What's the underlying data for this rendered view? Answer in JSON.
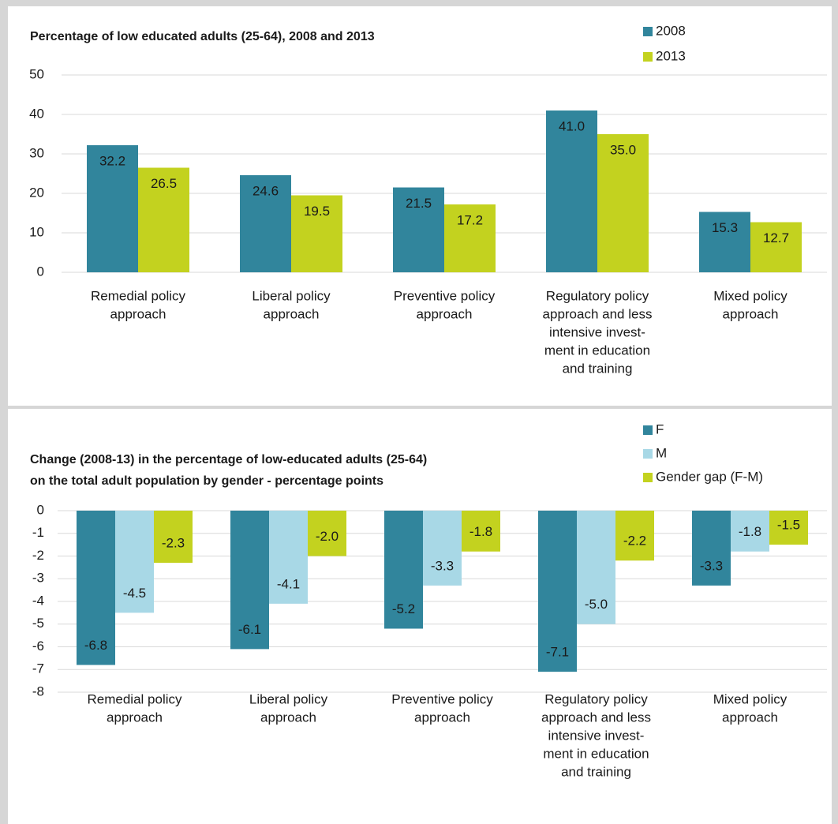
{
  "chart_data": [
    {
      "type": "bar",
      "title": "Percentage of low educated adults (25-64), 2008 and 2013",
      "categories": [
        [
          "Remedial policy",
          "approach"
        ],
        [
          "Liberal policy",
          "approach"
        ],
        [
          "Preventive policy",
          "approach"
        ],
        [
          "Regulatory policy",
          "approach and less",
          "intensive invest-",
          "ment in education",
          "and training"
        ],
        [
          "Mixed policy",
          "approach"
        ]
      ],
      "series": [
        {
          "name": "2008",
          "color": "#31859c",
          "values": [
            32.2,
            24.6,
            21.5,
            41.0,
            15.3
          ],
          "value_labels": [
            "32.2",
            "24.6",
            "21.5",
            "41.0",
            "15.3"
          ]
        },
        {
          "name": "2013",
          "color": "#c3d21f",
          "values": [
            26.5,
            19.5,
            17.2,
            35.0,
            12.7
          ],
          "value_labels": [
            "26.5",
            "19.5",
            "17.2",
            "35.0",
            "12.7"
          ]
        }
      ],
      "ylim": [
        0,
        50
      ],
      "yticks": [
        0,
        10,
        20,
        30,
        40,
        50
      ],
      "grid": true
    },
    {
      "type": "bar",
      "title": [
        "Change (2008-13) in the percentage of low-educated adults (25-64)",
        "on the total adult population by gender - percentage points"
      ],
      "categories": [
        [
          "Remedial policy",
          "approach"
        ],
        [
          "Liberal policy",
          "approach"
        ],
        [
          "Preventive policy",
          "approach"
        ],
        [
          "Regulatory policy",
          "approach and less",
          "intensive invest-",
          "ment in education",
          "and training"
        ],
        [
          "Mixed policy",
          "approach"
        ]
      ],
      "series": [
        {
          "name": "F",
          "color": "#31859c",
          "values": [
            -6.8,
            -6.1,
            -5.2,
            -7.1,
            -3.3
          ],
          "value_labels": [
            "-6.8",
            "-6.1",
            "-5.2",
            "-7.1",
            "-3.3"
          ]
        },
        {
          "name": "M",
          "color": "#a8d8e6",
          "values": [
            -4.5,
            -4.1,
            -3.3,
            -5.0,
            -1.8
          ],
          "value_labels": [
            "-4.5",
            "-4.1",
            "-3.3",
            "-5.0",
            "-1.8"
          ]
        },
        {
          "name": "Gender gap (F-M)",
          "color": "#c3d21f",
          "values": [
            -2.3,
            -2.0,
            -1.8,
            -2.2,
            -1.5
          ],
          "value_labels": [
            "-2.3",
            "-2.0",
            "-1.8",
            "-2.2",
            "-1.5"
          ]
        }
      ],
      "ylim": [
        -8,
        0
      ],
      "yticks": [
        -8,
        -7,
        -6,
        -5,
        -4,
        -3,
        -2,
        -1,
        0
      ],
      "grid": true
    }
  ]
}
